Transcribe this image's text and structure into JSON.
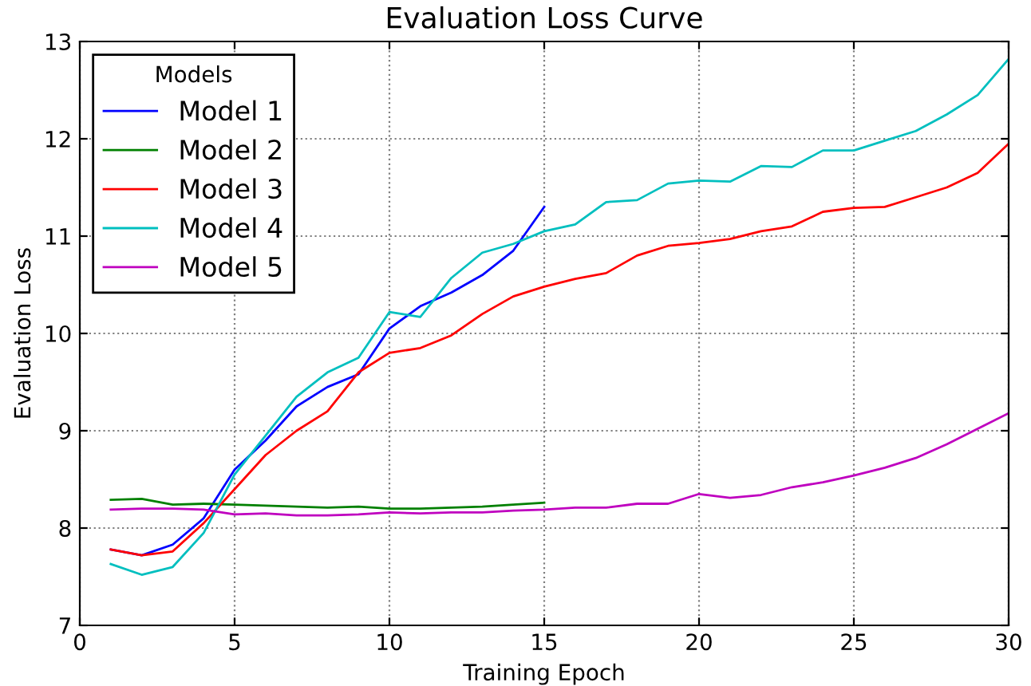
{
  "chart_data": {
    "type": "line",
    "title": "Evaluation Loss Curve",
    "xlabel": "Training Epoch",
    "ylabel": "Evaluation Loss",
    "legend_title": "Models",
    "legend": "top left",
    "grid": true,
    "xlim": [
      0,
      30
    ],
    "xticks": [
      0,
      5,
      10,
      15,
      20,
      25,
      30
    ],
    "ylim": [
      7,
      13
    ],
    "yticks": [
      7,
      8,
      9,
      10,
      11,
      12,
      13
    ],
    "series": [
      {
        "name": "Model 1",
        "color": "#0000ff",
        "x": [
          1,
          2,
          3,
          4,
          5,
          6,
          7,
          8,
          9,
          10,
          11,
          12,
          13,
          14,
          15
        ],
        "values": [
          7.78,
          7.72,
          7.83,
          8.1,
          8.6,
          8.9,
          9.25,
          9.45,
          9.58,
          10.05,
          10.28,
          10.42,
          10.6,
          10.85,
          11.3
        ]
      },
      {
        "name": "Model 2",
        "color": "#008000",
        "x": [
          1,
          2,
          3,
          4,
          5,
          6,
          7,
          8,
          9,
          10,
          11,
          12,
          13,
          14,
          15
        ],
        "values": [
          8.29,
          8.3,
          8.24,
          8.25,
          8.24,
          8.23,
          8.22,
          8.21,
          8.22,
          8.2,
          8.2,
          8.21,
          8.22,
          8.24,
          8.26
        ]
      },
      {
        "name": "Model 3",
        "color": "#ff0000",
        "x": [
          1,
          2,
          3,
          4,
          5,
          6,
          7,
          8,
          9,
          10,
          11,
          12,
          13,
          14,
          15,
          16,
          17,
          18,
          19,
          20,
          21,
          22,
          23,
          24,
          25,
          26,
          27,
          28,
          29,
          30
        ],
        "values": [
          7.78,
          7.72,
          7.76,
          8.05,
          8.4,
          8.75,
          9.0,
          9.2,
          9.6,
          9.8,
          9.85,
          9.98,
          10.2,
          10.38,
          10.48,
          10.56,
          10.62,
          10.8,
          10.9,
          10.93,
          10.97,
          11.05,
          11.1,
          11.25,
          11.29,
          11.3,
          11.4,
          11.5,
          11.65,
          11.95
        ]
      },
      {
        "name": "Model 4",
        "color": "#00bfbf",
        "x": [
          1,
          2,
          3,
          4,
          5,
          6,
          7,
          8,
          9,
          10,
          11,
          12,
          13,
          14,
          15,
          16,
          17,
          18,
          19,
          20,
          21,
          22,
          23,
          24,
          25,
          26,
          27,
          28,
          29,
          30
        ],
        "values": [
          7.63,
          7.52,
          7.6,
          7.95,
          8.55,
          8.95,
          9.35,
          9.6,
          9.75,
          10.22,
          10.17,
          10.57,
          10.83,
          10.92,
          11.05,
          11.12,
          11.35,
          11.37,
          11.54,
          11.57,
          11.56,
          11.72,
          11.71,
          11.88,
          11.88,
          11.98,
          12.08,
          12.25,
          12.45,
          12.82
        ]
      },
      {
        "name": "Model 5",
        "color": "#bf00bf",
        "x": [
          1,
          2,
          3,
          4,
          5,
          6,
          7,
          8,
          9,
          10,
          11,
          12,
          13,
          14,
          15,
          16,
          17,
          18,
          19,
          20,
          21,
          22,
          23,
          24,
          25,
          26,
          27,
          28,
          29,
          30
        ],
        "values": [
          8.19,
          8.2,
          8.2,
          8.19,
          8.14,
          8.15,
          8.13,
          8.13,
          8.14,
          8.16,
          8.15,
          8.16,
          8.16,
          8.18,
          8.19,
          8.21,
          8.21,
          8.25,
          8.25,
          8.35,
          8.31,
          8.34,
          8.42,
          8.47,
          8.54,
          8.62,
          8.72,
          8.86,
          9.02,
          9.18
        ]
      }
    ]
  }
}
